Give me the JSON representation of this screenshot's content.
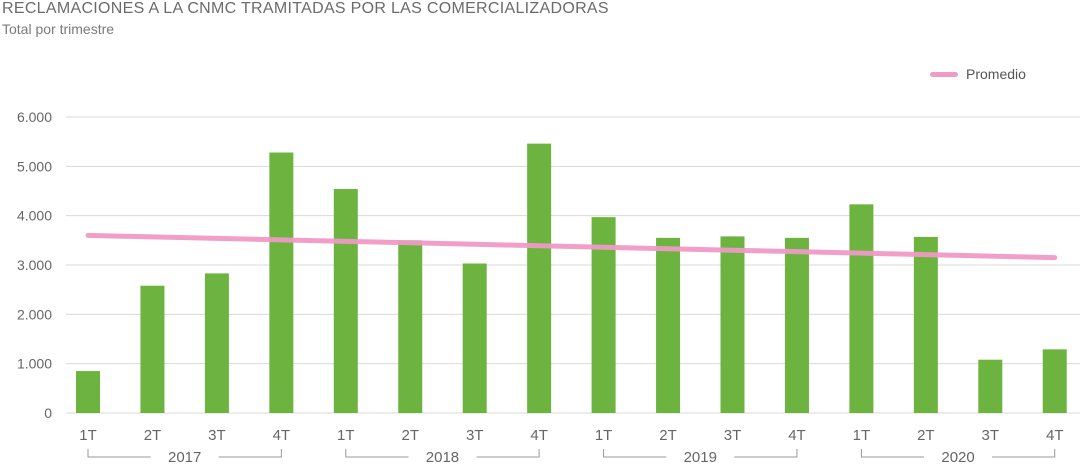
{
  "header": {
    "title": "RECLAMACIONES A LA CNMC TRAMITADAS POR LAS COMERCIALIZADORAS",
    "subtitle": "Total por trimestre"
  },
  "colors": {
    "bar": "#6db33f",
    "average": "#f09ac6",
    "grid": "#d9d9d9",
    "text": "#666666"
  },
  "chart_data": {
    "type": "bar",
    "title": "RECLAMACIONES A LA CNMC TRAMITADAS POR LAS COMERCIALIZADORAS",
    "subtitle": "Total por trimestre",
    "ylim": [
      0,
      6000
    ],
    "yticks": [
      0,
      1000,
      2000,
      3000,
      4000,
      5000,
      6000
    ],
    "ytick_labels": [
      "0",
      "1.000",
      "2.000",
      "3.000",
      "4.000",
      "5.000",
      "6.000"
    ],
    "grid": true,
    "legend_position": "top-right",
    "categories": [
      "1T",
      "2T",
      "3T",
      "4T",
      "1T",
      "2T",
      "3T",
      "4T",
      "1T",
      "2T",
      "3T",
      "4T",
      "1T",
      "2T",
      "3T",
      "4T"
    ],
    "groups": [
      {
        "label": "2017",
        "start": 0,
        "end": 3
      },
      {
        "label": "2018",
        "start": 4,
        "end": 7
      },
      {
        "label": "2019",
        "start": 8,
        "end": 11
      },
      {
        "label": "2020",
        "start": 12,
        "end": 15
      }
    ],
    "series": [
      {
        "type": "bar",
        "values": [
          850,
          2580,
          2830,
          5280,
          4540,
          3500,
          3030,
          5460,
          3970,
          3550,
          3580,
          3550,
          4230,
          3570,
          1080,
          1290
        ]
      },
      {
        "name": "Promedio",
        "type": "line",
        "values": [
          3600,
          3570,
          3540,
          3510,
          3480,
          3450,
          3420,
          3390,
          3360,
          3330,
          3300,
          3270,
          3240,
          3210,
          3180,
          3150
        ]
      }
    ]
  }
}
